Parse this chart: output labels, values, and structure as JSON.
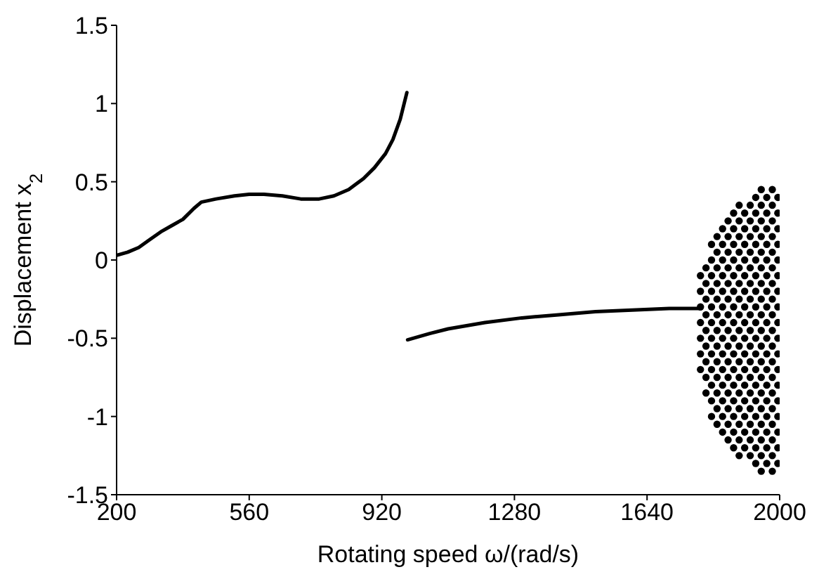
{
  "chart_data": {
    "type": "scatter",
    "xlabel": "Rotating speed ω/(rad/s)",
    "ylabel": "Displacement  x$_{2}$",
    "xlim": [
      200,
      2000
    ],
    "xticks": [
      200,
      560,
      920,
      1280,
      1640,
      2000
    ],
    "ylim": [
      -1.5,
      1.5
    ],
    "yticks": [
      -1.5,
      -1,
      -0.5,
      0,
      0.5,
      1,
      1.5
    ],
    "series": [
      {
        "type": "line",
        "color": "#000000",
        "x": [
          200,
          230,
          260,
          290,
          320,
          350,
          380,
          410,
          430,
          470,
          520,
          560,
          600,
          650,
          700,
          750,
          790,
          830,
          870,
          900,
          930,
          950,
          970,
          988
        ],
        "values": [
          0.03,
          0.05,
          0.08,
          0.13,
          0.18,
          0.22,
          0.26,
          0.33,
          0.37,
          0.39,
          0.41,
          0.42,
          0.42,
          0.41,
          0.39,
          0.39,
          0.41,
          0.45,
          0.52,
          0.59,
          0.68,
          0.77,
          0.9,
          1.07
        ]
      },
      {
        "type": "line",
        "color": "#000000",
        "x": [
          990,
          1050,
          1100,
          1200,
          1300,
          1400,
          1500,
          1600,
          1700,
          1785
        ],
        "values": [
          -0.51,
          -0.47,
          -0.44,
          -0.4,
          -0.37,
          -0.35,
          -0.33,
          -0.32,
          -0.31,
          -0.31
        ]
      },
      {
        "color": "#000000",
        "x": [
          1785,
          1785,
          1785,
          1785,
          1785,
          1785,
          1785
        ],
        "values": [
          -0.1,
          -0.2,
          -0.3,
          -0.4,
          -0.5,
          -0.6,
          -0.7
        ]
      },
      {
        "color": "#000000",
        "x": [
          1800,
          1800,
          1800,
          1800,
          1800,
          1800,
          1800,
          1800,
          1800
        ],
        "values": [
          -0.05,
          -0.15,
          -0.25,
          -0.35,
          -0.45,
          -0.55,
          -0.65,
          -0.75,
          -0.85
        ]
      },
      {
        "color": "#000000",
        "x": [
          1815,
          1815,
          1815,
          1815,
          1815,
          1815,
          1815,
          1815,
          1815,
          1815,
          1815,
          1815
        ],
        "values": [
          0.1,
          0,
          -0.1,
          -0.2,
          -0.3,
          -0.4,
          -0.5,
          -0.6,
          -0.7,
          -0.8,
          -0.9,
          -1
        ]
      },
      {
        "color": "#000000",
        "x": [
          1830,
          1830,
          1830,
          1830,
          1830,
          1830,
          1830,
          1830,
          1830,
          1830,
          1830,
          1830,
          1830
        ],
        "values": [
          0.15,
          0.05,
          -0.05,
          -0.15,
          -0.25,
          -0.35,
          -0.45,
          -0.55,
          -0.65,
          -0.75,
          -0.85,
          -0.95,
          -1.05
        ]
      },
      {
        "color": "#000000",
        "x": [
          1845,
          1845,
          1845,
          1845,
          1845,
          1845,
          1845,
          1845,
          1845,
          1845,
          1845,
          1845,
          1845,
          1845
        ],
        "values": [
          0.2,
          0.1,
          0,
          -0.1,
          -0.2,
          -0.3,
          -0.4,
          -0.5,
          -0.6,
          -0.7,
          -0.8,
          -0.9,
          -1,
          -1.1
        ]
      },
      {
        "color": "#000000",
        "x": [
          1860,
          1860,
          1860,
          1860,
          1860,
          1860,
          1860,
          1860,
          1860,
          1860,
          1860,
          1860,
          1860,
          1860,
          1860
        ],
        "values": [
          0.25,
          0.15,
          0.05,
          -0.05,
          -0.15,
          -0.25,
          -0.35,
          -0.45,
          -0.55,
          -0.65,
          -0.75,
          -0.85,
          -0.95,
          -1.05,
          -1.15
        ]
      },
      {
        "color": "#000000",
        "x": [
          1875,
          1875,
          1875,
          1875,
          1875,
          1875,
          1875,
          1875,
          1875,
          1875,
          1875,
          1875,
          1875,
          1875,
          1875,
          1875
        ],
        "values": [
          0.3,
          0.2,
          0.1,
          0,
          -0.1,
          -0.2,
          -0.3,
          -0.4,
          -0.5,
          -0.6,
          -0.7,
          -0.8,
          -0.9,
          -1,
          -1.1,
          -1.2
        ]
      },
      {
        "color": "#000000",
        "x": [
          1890,
          1890,
          1890,
          1890,
          1890,
          1890,
          1890,
          1890,
          1890,
          1890,
          1890,
          1890,
          1890,
          1890,
          1890,
          1890,
          1890
        ],
        "values": [
          0.35,
          0.25,
          0.15,
          0.05,
          -0.05,
          -0.15,
          -0.25,
          -0.35,
          -0.45,
          -0.55,
          -0.65,
          -0.75,
          -0.85,
          -0.95,
          -1.05,
          -1.15,
          -1.25
        ]
      },
      {
        "color": "#000000",
        "x": [
          1905,
          1905,
          1905,
          1905,
          1905,
          1905,
          1905,
          1905,
          1905,
          1905,
          1905,
          1905,
          1905,
          1905,
          1905,
          1905
        ],
        "values": [
          0.3,
          0.2,
          0.1,
          0,
          -0.1,
          -0.2,
          -0.3,
          -0.4,
          -0.5,
          -0.6,
          -0.7,
          -0.8,
          -0.9,
          -1,
          -1.1,
          -1.2
        ]
      },
      {
        "color": "#000000",
        "x": [
          1920,
          1920,
          1920,
          1920,
          1920,
          1920,
          1920,
          1920,
          1920,
          1920,
          1920,
          1920,
          1920,
          1920,
          1920,
          1920,
          1920
        ],
        "values": [
          0.35,
          0.25,
          0.15,
          0.05,
          -0.05,
          -0.15,
          -0.25,
          -0.35,
          -0.45,
          -0.55,
          -0.65,
          -0.75,
          -0.85,
          -0.95,
          -1.05,
          -1.15,
          -1.25
        ]
      },
      {
        "color": "#000000",
        "x": [
          1935,
          1935,
          1935,
          1935,
          1935,
          1935,
          1935,
          1935,
          1935,
          1935,
          1935,
          1935,
          1935,
          1935,
          1935,
          1935,
          1935,
          1935
        ],
        "values": [
          0.4,
          0.3,
          0.2,
          0.1,
          0,
          -0.1,
          -0.2,
          -0.3,
          -0.4,
          -0.5,
          -0.6,
          -0.7,
          -0.8,
          -0.9,
          -1,
          -1.1,
          -1.2,
          -1.3
        ]
      },
      {
        "color": "#000000",
        "x": [
          1950,
          1950,
          1950,
          1950,
          1950,
          1950,
          1950,
          1950,
          1950,
          1950,
          1950,
          1950,
          1950,
          1950,
          1950,
          1950,
          1950,
          1950,
          1950
        ],
        "values": [
          0.45,
          0.35,
          0.25,
          0.15,
          0.05,
          -0.05,
          -0.15,
          -0.25,
          -0.35,
          -0.45,
          -0.55,
          -0.65,
          -0.75,
          -0.85,
          -0.95,
          -1.05,
          -1.15,
          -1.25,
          -1.35
        ]
      },
      {
        "color": "#000000",
        "x": [
          1965,
          1965,
          1965,
          1965,
          1965,
          1965,
          1965,
          1965,
          1965,
          1965,
          1965,
          1965,
          1965,
          1965,
          1965,
          1965,
          1965,
          1965
        ],
        "values": [
          0.4,
          0.3,
          0.2,
          0.1,
          0,
          -0.1,
          -0.2,
          -0.3,
          -0.4,
          -0.5,
          -0.6,
          -0.7,
          -0.8,
          -0.9,
          -1,
          -1.1,
          -1.2,
          -1.3
        ]
      },
      {
        "color": "#000000",
        "x": [
          1980,
          1980,
          1980,
          1980,
          1980,
          1980,
          1980,
          1980,
          1980,
          1980,
          1980,
          1980,
          1980,
          1980,
          1980,
          1980,
          1980,
          1980,
          1980
        ],
        "values": [
          0.45,
          0.35,
          0.25,
          0.15,
          0.05,
          -0.05,
          -0.15,
          -0.25,
          -0.35,
          -0.45,
          -0.55,
          -0.65,
          -0.75,
          -0.85,
          -0.95,
          -1.05,
          -1.15,
          -1.25,
          -1.35
        ]
      },
      {
        "color": "#000000",
        "x": [
          1995,
          1995,
          1995,
          1995,
          1995,
          1995,
          1995,
          1995,
          1995,
          1995,
          1995,
          1995,
          1995,
          1995,
          1995,
          1995,
          1995,
          1995
        ],
        "values": [
          0.4,
          0.3,
          0.2,
          0.1,
          0,
          -0.1,
          -0.2,
          -0.3,
          -0.4,
          -0.5,
          -0.6,
          -0.7,
          -0.8,
          -0.9,
          -1,
          -1.1,
          -1.2,
          -1.3
        ]
      }
    ]
  }
}
